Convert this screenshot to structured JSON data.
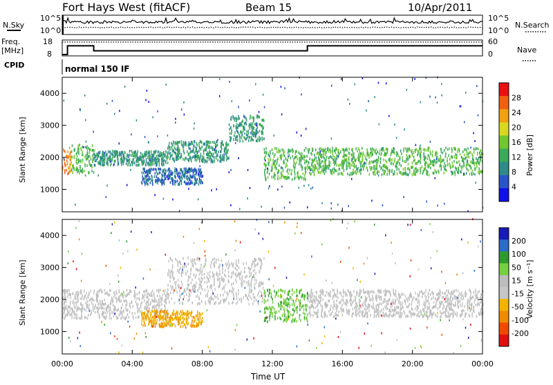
{
  "header": {
    "title": "Fort Hays West (fitACF)",
    "beam": "Beam 15",
    "date": "10/Apr/2011"
  },
  "top_panels": {
    "nsky_label": "N.Sky",
    "nsearch_label": "N.Search",
    "freq_label": "Freq.",
    "freq_unit": "[MHz]",
    "nave_label": "Nave",
    "cpid_label": "CPID",
    "cpid_value": "normal 150 IF",
    "left_ticks_noise": [
      "10^5",
      "10^0"
    ],
    "right_ticks_noise": [
      "10^5",
      "10^0"
    ],
    "left_ticks_freq": [
      "18",
      "8"
    ],
    "right_ticks_nave": [
      "60",
      "0"
    ]
  },
  "colors": {
    "power": [
      "#1010e8",
      "#2a55c8",
      "#2f8a8a",
      "#3aaa5a",
      "#70c830",
      "#d8d820",
      "#f0a010",
      "#f06010",
      "#e81010"
    ],
    "velocity": [
      "#1a1ab8",
      "#2a6cc8",
      "#2e9a2e",
      "#74d040",
      "#bdbdbd",
      "#c6c6c6",
      "#f2b400",
      "#f08a00",
      "#f04a00",
      "#e01010"
    ]
  },
  "chart_data": [
    {
      "type": "heatmap",
      "name_id": "power",
      "xlabel": "",
      "ylabel": "Slant Range [km]",
      "xlim": [
        0,
        24
      ],
      "ylim": [
        300,
        4500
      ],
      "yticks": [
        1000,
        2000,
        3000,
        4000
      ],
      "colorbar": {
        "label": "Power [dB]",
        "ticks": [
          "4",
          "8",
          "12",
          "16",
          "20",
          "24",
          "28"
        ],
        "range": [
          0,
          30
        ]
      },
      "bands": [
        {
          "t": [
            0.0,
            0.5
          ],
          "r": [
            1400,
            2300
          ],
          "level": 6
        },
        {
          "t": [
            0.5,
            1.8
          ],
          "r": [
            1500,
            2400
          ],
          "level": 3
        },
        {
          "t": [
            1.8,
            6.0
          ],
          "r": [
            1750,
            2200
          ],
          "level": 2
        },
        {
          "t": [
            4.5,
            8.0
          ],
          "r": [
            1150,
            1650
          ],
          "level": 1
        },
        {
          "t": [
            6.0,
            9.5
          ],
          "r": [
            1850,
            2500
          ],
          "level": 2
        },
        {
          "t": [
            9.5,
            11.5
          ],
          "r": [
            2500,
            3300
          ],
          "level": 2
        },
        {
          "t": [
            11.5,
            14.0
          ],
          "r": [
            1300,
            2300
          ],
          "level": 3
        },
        {
          "t": [
            14.0,
            24.0
          ],
          "r": [
            1450,
            2300
          ],
          "level": 3
        }
      ]
    },
    {
      "type": "heatmap",
      "name_id": "velocity",
      "xlabel": "Time UT",
      "ylabel": "Slant Range [km]",
      "xlim": [
        0,
        24
      ],
      "ylim": [
        300,
        4500
      ],
      "yticks": [
        1000,
        2000,
        3000,
        4000
      ],
      "xticks": [
        "00:00",
        "04:00",
        "08:00",
        "12:00",
        "16:00",
        "20:00",
        "00:00"
      ],
      "colorbar": {
        "label": "Velocity [m s⁻¹]",
        "ticks": [
          "200",
          "100",
          "50",
          "15",
          "-15",
          "-50",
          "-100",
          "-200"
        ],
        "range": [
          -250,
          250
        ]
      },
      "bands": [
        {
          "t": [
            0.0,
            6.0
          ],
          "r": [
            1400,
            2300
          ],
          "class": "ground"
        },
        {
          "t": [
            4.5,
            8.0
          ],
          "r": [
            1150,
            1650
          ],
          "class": "negative"
        },
        {
          "t": [
            6.0,
            11.5
          ],
          "r": [
            1850,
            3300
          ],
          "class": "ground"
        },
        {
          "t": [
            11.5,
            14.0
          ],
          "r": [
            1300,
            2300
          ],
          "class": "positive"
        },
        {
          "t": [
            14.0,
            24.0
          ],
          "r": [
            1450,
            2300
          ],
          "class": "ground"
        }
      ]
    }
  ],
  "frequency_series": {
    "t": [
      0.0,
      0.3,
      0.3,
      1.8,
      1.8,
      14.0,
      14.0,
      24.0
    ],
    "mhz": [
      8,
      8,
      15,
      15,
      11,
      11,
      15,
      15
    ]
  }
}
